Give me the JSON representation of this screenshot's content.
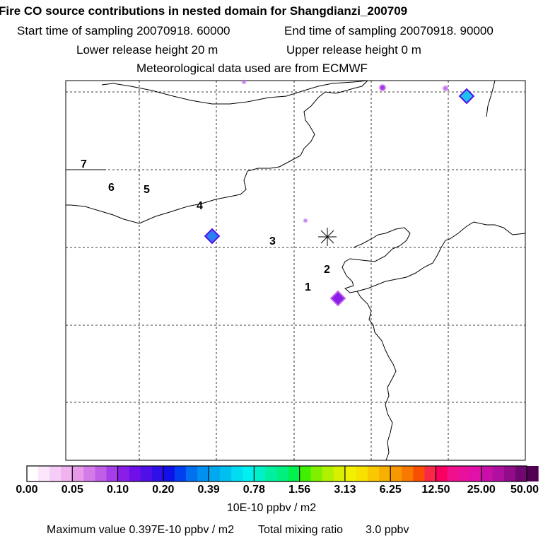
{
  "header": {
    "title": "Fire CO source contributions in nested domain for Shangdianzi_200709",
    "start_label": "Start time of sampling 20070918. 60000",
    "end_label": "End time of sampling 20070918. 90000",
    "lower_label": "Lower release height   20 m",
    "upper_label": "Upper release height    0 m",
    "met_label": "Meteorological data used are from ECMWF"
  },
  "colorbar": {
    "tick_labels": [
      "0.00",
      "0.05",
      "0.10",
      "0.20",
      "0.39",
      "0.78",
      "1.56",
      "3.13",
      "6.25",
      "12.50",
      "25.00",
      "50.00"
    ],
    "units": "10E-10 ppbv / m2",
    "colors": [
      "#ffffff",
      "#fbe6fb",
      "#f6cdf6",
      "#f0b3f0",
      "#e89ae8",
      "#d47be8",
      "#c05ee8",
      "#a43ee8",
      "#8a1ee8",
      "#7010e8",
      "#5010e8",
      "#3010e8",
      "#1010e8",
      "#0040f0",
      "#0070f0",
      "#0090f0",
      "#00a8f0",
      "#00c0f0",
      "#00dcf0",
      "#00f0f0",
      "#00f0c8",
      "#00f0a0",
      "#00f080",
      "#00f050",
      "#40f000",
      "#80f000",
      "#b0f000",
      "#d8f000",
      "#f0f000",
      "#f8e000",
      "#f8c800",
      "#f8b000",
      "#f89800",
      "#f87800",
      "#f85000",
      "#f82848",
      "#f80060",
      "#f0108c",
      "#e8109c",
      "#e010a8",
      "#c810a8",
      "#b010a0",
      "#900c88",
      "#700870",
      "#500050"
    ]
  },
  "map": {
    "site_marker": "asterisk",
    "labels": [
      {
        "text": "1",
        "x": 0.0,
        "y": 0.0
      },
      {
        "text": "2",
        "x": 0.0,
        "y": 0.0
      },
      {
        "text": "3",
        "x": 0.0,
        "y": 0.0
      },
      {
        "text": "4",
        "x": 0.0,
        "y": 0.0
      },
      {
        "text": "5",
        "x": 0.0,
        "y": 0.0
      },
      {
        "text": "6",
        "x": 0.0,
        "y": 0.0
      },
      {
        "text": "7",
        "x": 0.0,
        "y": 0.0
      }
    ]
  },
  "chart_data": {
    "type": "heatmap",
    "title": "Fire CO source contributions in nested domain for Shangdianzi_200709",
    "colorbar_levels": [
      0.0,
      0.05,
      0.1,
      0.2,
      0.39,
      0.78,
      1.56,
      3.13,
      6.25,
      12.5,
      25.0,
      50.0
    ],
    "colorbar_units": "10E-10 ppbv / m2",
    "max_value": "0.397E-10 ppbv / m2",
    "total_mixing_ratio": "3.0 ppbv"
  },
  "footer": {
    "max_label": "Maximum value  0.397E-10 ppbv / m2",
    "total_label": "Total mixing ratio",
    "total_value": "3.0 ppbv"
  }
}
